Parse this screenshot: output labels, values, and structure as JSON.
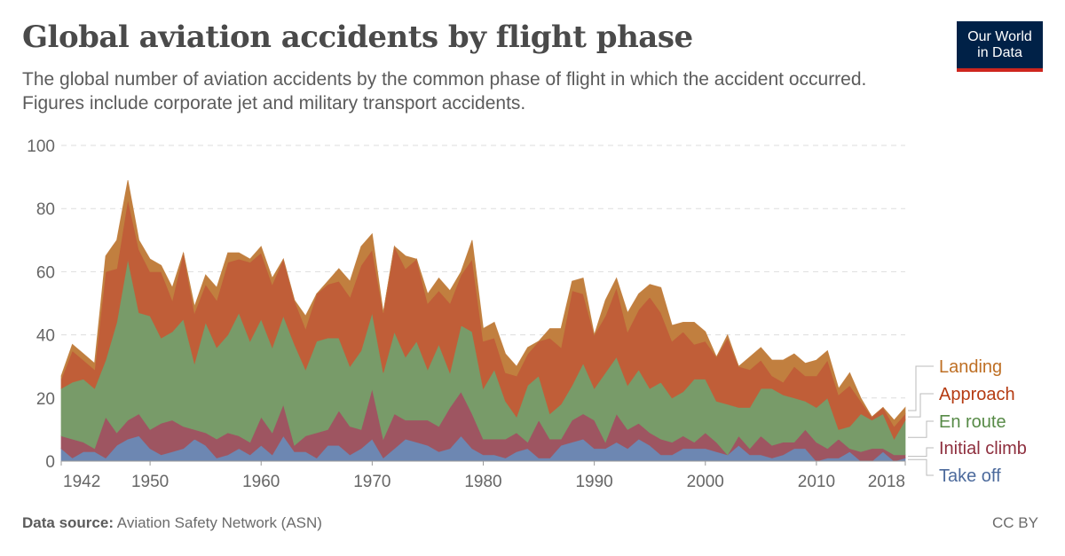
{
  "header": {
    "title": "Global aviation accidents by flight phase",
    "subtitle": "The global number of aviation accidents by the common phase of flight in which the accident occurred. Figures include corporate jet and military transport accidents.",
    "logo_line1": "Our World",
    "logo_line2": "in Data"
  },
  "footer": {
    "source_label": "Data source:",
    "source": "Aviation Safety Network (ASN)",
    "license": "CC BY"
  },
  "chart_data": {
    "type": "area",
    "stacked": true,
    "title": "",
    "xlabel": "",
    "ylabel": "",
    "ylim": [
      0,
      100
    ],
    "yticks": [
      0,
      20,
      40,
      60,
      80,
      100
    ],
    "xticks": [
      1942,
      1950,
      1960,
      1970,
      1980,
      1990,
      2000,
      2010,
      2018
    ],
    "grid": "horizontal dashed",
    "legend": "right",
    "x": [
      1942,
      1943,
      1944,
      1945,
      1946,
      1947,
      1948,
      1949,
      1950,
      1951,
      1952,
      1953,
      1954,
      1955,
      1956,
      1957,
      1958,
      1959,
      1960,
      1961,
      1962,
      1963,
      1964,
      1965,
      1966,
      1967,
      1968,
      1969,
      1970,
      1971,
      1972,
      1973,
      1974,
      1975,
      1976,
      1977,
      1978,
      1979,
      1980,
      1981,
      1982,
      1983,
      1984,
      1985,
      1986,
      1987,
      1988,
      1989,
      1990,
      1991,
      1992,
      1993,
      1994,
      1995,
      1996,
      1997,
      1998,
      1999,
      2000,
      2001,
      2002,
      2003,
      2004,
      2005,
      2006,
      2007,
      2008,
      2009,
      2010,
      2011,
      2012,
      2013,
      2014,
      2015,
      2016,
      2017,
      2018
    ],
    "series": [
      {
        "name": "Take off",
        "color": "#6d87b2",
        "label_color": "#4c6a9c",
        "values": [
          4,
          1,
          3,
          3,
          1,
          5,
          7,
          8,
          4,
          2,
          3,
          4,
          7,
          5,
          1,
          2,
          4,
          2,
          5,
          2,
          8,
          3,
          3,
          1,
          5,
          5,
          2,
          4,
          7,
          1,
          4,
          7,
          6,
          5,
          3,
          4,
          8,
          4,
          2,
          2,
          1,
          3,
          4,
          1,
          1,
          5,
          6,
          7,
          4,
          4,
          6,
          4,
          7,
          5,
          2,
          2,
          4,
          4,
          4,
          3,
          2,
          5,
          2,
          2,
          1,
          2,
          4,
          4,
          0,
          1,
          1,
          3,
          0,
          0,
          3,
          0,
          1
        ]
      },
      {
        "name": "Initial climb",
        "color": "#9e5561",
        "label_color": "#8e2f3e",
        "values": [
          4,
          6,
          3,
          1,
          13,
          4,
          6,
          7,
          6,
          10,
          10,
          7,
          3,
          4,
          6,
          7,
          4,
          4,
          9,
          7,
          10,
          2,
          5,
          8,
          5,
          11,
          9,
          6,
          16,
          6,
          11,
          6,
          7,
          8,
          8,
          13,
          14,
          11,
          5,
          5,
          6,
          6,
          2,
          12,
          6,
          2,
          7,
          8,
          9,
          2,
          9,
          6,
          5,
          4,
          5,
          4,
          4,
          2,
          5,
          3,
          0,
          3,
          2,
          6,
          4,
          4,
          2,
          6,
          6,
          3,
          6,
          1,
          3,
          4,
          1,
          2,
          1
        ]
      },
      {
        "name": "En route",
        "color": "#789b69",
        "label_color": "#578a47",
        "values": [
          15,
          18,
          20,
          19,
          18,
          35,
          51,
          32,
          36,
          27,
          28,
          34,
          21,
          35,
          29,
          31,
          39,
          32,
          31,
          27,
          28,
          32,
          21,
          29,
          29,
          23,
          19,
          25,
          24,
          21,
          26,
          20,
          25,
          16,
          26,
          11,
          21,
          26,
          16,
          22,
          12,
          5,
          18,
          14,
          8,
          11,
          11,
          16,
          10,
          22,
          18,
          14,
          17,
          14,
          18,
          14,
          14,
          20,
          17,
          13,
          16,
          9,
          13,
          15,
          18,
          15,
          14,
          9,
          11,
          16,
          3,
          7,
          12,
          9,
          11,
          5,
          11
        ]
      },
      {
        "name": "Approach",
        "color": "#c05e38",
        "label_color": "#b53b12",
        "values": [
          3,
          10,
          6,
          6,
          28,
          17,
          19,
          20,
          14,
          21,
          10,
          21,
          16,
          12,
          15,
          23,
          17,
          25,
          21,
          20,
          18,
          14,
          13,
          15,
          17,
          18,
          22,
          27,
          20,
          19,
          27,
          28,
          26,
          21,
          17,
          22,
          16,
          23,
          15,
          10,
          9,
          13,
          10,
          11,
          24,
          18,
          30,
          22,
          17,
          18,
          22,
          17,
          19,
          29,
          22,
          18,
          19,
          11,
          12,
          14,
          21,
          13,
          12,
          9,
          4,
          4,
          10,
          8,
          10,
          12,
          11,
          13,
          4,
          1,
          2,
          4,
          2
        ]
      },
      {
        "name": "Landing",
        "color": "#c17f3f",
        "label_color": "#be6f24",
        "values": [
          1,
          2,
          2,
          2,
          5,
          9,
          6,
          3,
          4,
          2,
          4,
          0,
          2,
          3,
          4,
          3,
          2,
          1,
          2,
          2,
          0,
          0,
          4,
          0,
          1,
          4,
          5,
          6,
          5,
          0,
          0,
          4,
          0,
          3,
          4,
          4,
          1,
          6,
          4,
          5,
          6,
          3,
          2,
          0,
          3,
          6,
          3,
          5,
          0,
          5,
          3,
          6,
          5,
          4,
          8,
          5,
          3,
          7,
          3,
          0,
          1,
          0,
          4,
          4,
          5,
          7,
          4,
          4,
          5,
          3,
          2,
          4,
          1,
          0,
          0,
          2,
          2
        ]
      }
    ]
  }
}
